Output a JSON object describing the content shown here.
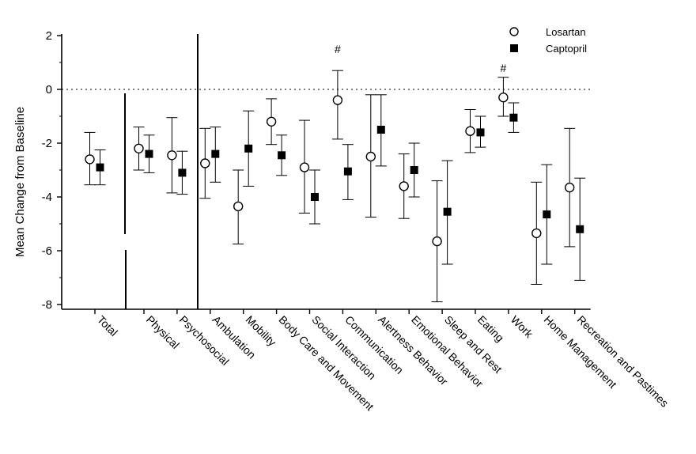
{
  "chart_data": {
    "type": "scatter",
    "title": "",
    "ylabel": "Mean Change from Baseline",
    "xlabel": "",
    "ylim": [
      -8,
      2
    ],
    "yticks": [
      "2",
      "0",
      "-2",
      "-4",
      "-6",
      "-8"
    ],
    "reference_line": 0,
    "categories": [
      "Total",
      "Physical",
      "Psychosocial",
      "Ambulation",
      "Mobility",
      "Body Care and Movement",
      "Social Interaction",
      "Communication",
      "Alertness Behavior",
      "Emotional Behavior",
      "Sleep and Rest",
      "Eating",
      "Work",
      "Home Management",
      "Recreation and Pastimes"
    ],
    "group_dividers_after": [
      "Total",
      "Psychosocial"
    ],
    "legend_position": "top-right",
    "series": [
      {
        "name": "Losartan",
        "marker": "open-circle",
        "values": [
          -2.6,
          -2.2,
          -2.45,
          -2.75,
          -4.35,
          -1.2,
          -2.9,
          -0.4,
          -2.5,
          -3.6,
          -5.65,
          -1.55,
          -0.3,
          -5.35,
          -3.65
        ],
        "err_low": [
          -3.55,
          -3.0,
          -3.85,
          -4.05,
          -5.75,
          -2.05,
          -4.6,
          -1.85,
          -4.75,
          -4.8,
          -7.9,
          -2.35,
          -1.0,
          -7.25,
          -5.85
        ],
        "err_high": [
          -1.6,
          -1.4,
          -1.05,
          -1.45,
          -3.0,
          -0.35,
          -1.15,
          0.7,
          -0.2,
          -2.4,
          -3.4,
          -0.75,
          0.45,
          -3.45,
          -1.45
        ]
      },
      {
        "name": "Captopril",
        "marker": "filled-square",
        "values": [
          -2.9,
          -2.4,
          -3.1,
          -2.4,
          -2.2,
          -2.45,
          -4.0,
          -3.05,
          -1.5,
          -3.0,
          -4.55,
          -1.6,
          -1.05,
          -4.65,
          -5.2
        ],
        "err_low": [
          -3.55,
          -3.1,
          -3.9,
          -3.45,
          -3.6,
          -3.2,
          -5.0,
          -4.1,
          -2.85,
          -4.0,
          -6.5,
          -2.15,
          -1.6,
          -6.5,
          -7.1
        ],
        "err_high": [
          -2.25,
          -1.7,
          -2.3,
          -1.4,
          -0.8,
          -1.7,
          -3.0,
          -2.05,
          -0.2,
          -2.0,
          -2.65,
          -1.0,
          -0.5,
          -2.8,
          -3.3
        ]
      }
    ],
    "annotations": [
      {
        "text": "#",
        "category": "Communication",
        "y": 1.35
      },
      {
        "text": "#",
        "category": "Work",
        "y": 0.65
      }
    ]
  }
}
